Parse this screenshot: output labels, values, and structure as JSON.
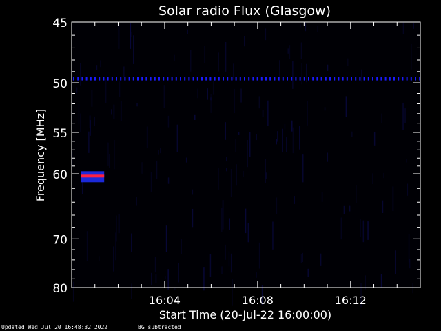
{
  "chart_data": {
    "type": "heatmap",
    "title": "Solar radio Flux (Glasgow)",
    "xlabel": "Start Time (20-Jul-22 16:00:00)",
    "ylabel": "Frequency [MHz]",
    "x_start": "16:00:00",
    "x_end": "16:15:00",
    "x_ticks": [
      "16:04",
      "16:08",
      "16:12"
    ],
    "x_tick_minutes": [
      4,
      8,
      12
    ],
    "y_ticks": [
      45,
      50,
      55,
      60,
      70,
      80
    ],
    "ylim": [
      45,
      80
    ],
    "features": [
      {
        "kind": "interference_line",
        "frequency_mhz": 49.6,
        "minutes": [
          0,
          15
        ]
      },
      {
        "kind": "burst",
        "frequency_mhz": 60.3,
        "minutes": [
          0.4,
          1.4
        ]
      }
    ],
    "colors": {
      "background": "#000005",
      "noise": "#0a0a4a",
      "line": "#1a1aff",
      "burst_core": "#ff2040",
      "burst_edge": "#2030ff"
    }
  },
  "footer": {
    "updated": "Updated Wed Jul 20 16:48:32 2022",
    "bg_note": "BG subtracted"
  }
}
